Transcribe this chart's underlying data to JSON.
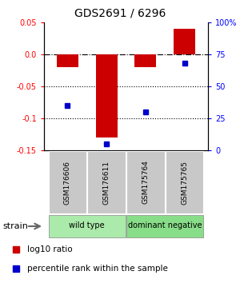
{
  "title": "GDS2691 / 6296",
  "samples": [
    "GSM176606",
    "GSM176611",
    "GSM175764",
    "GSM175765"
  ],
  "log10_ratio": [
    -0.02,
    -0.13,
    -0.02,
    0.04
  ],
  "percentile_rank": [
    35,
    5,
    30,
    68
  ],
  "ylim_left": [
    -0.15,
    0.05
  ],
  "ylim_right": [
    0,
    100
  ],
  "yticks_left": [
    -0.15,
    -0.1,
    -0.05,
    0.0,
    0.05
  ],
  "yticks_right": [
    0,
    25,
    50,
    75,
    100
  ],
  "bar_color": "#cc0000",
  "point_color": "#0000cc",
  "hline_y": 0.0,
  "dotted_lines": [
    -0.05,
    -0.1
  ],
  "groups": [
    {
      "label": "wild type",
      "samples": [
        0,
        1
      ],
      "color": "#aaeaaa"
    },
    {
      "label": "dominant negative",
      "samples": [
        2,
        3
      ],
      "color": "#88dd88"
    }
  ],
  "legend_bar_label": "log10 ratio",
  "legend_point_label": "percentile rank within the sample",
  "strain_label": "strain",
  "background_color": "#ffffff",
  "plot_bg": "#ffffff",
  "bar_width": 0.55,
  "sample_box_color": "#c8c8c8",
  "sample_divider_color": "#ffffff"
}
